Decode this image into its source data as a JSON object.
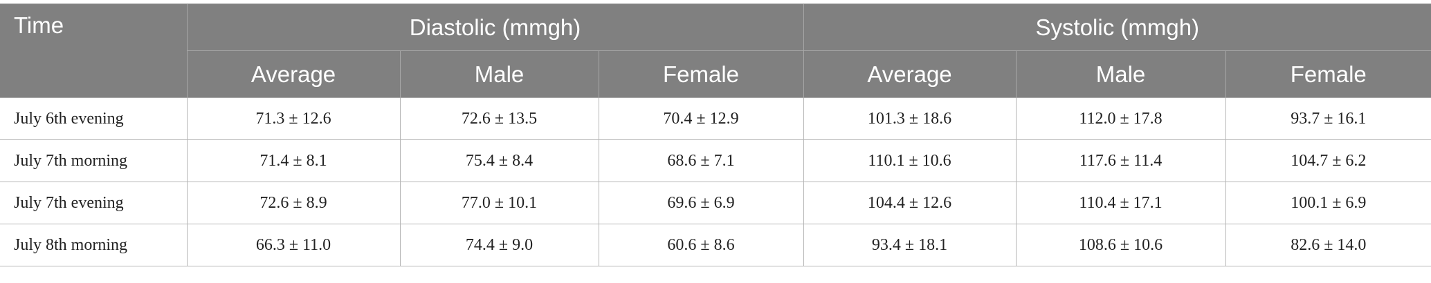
{
  "header": {
    "time": "Time",
    "groups": [
      {
        "label": "Diastolic (mmgh)",
        "columns": [
          "Average",
          "Male",
          "Female"
        ]
      },
      {
        "label": "Systolic (mmgh)",
        "columns": [
          "Average",
          "Male",
          "Female"
        ]
      }
    ]
  },
  "table": {
    "rows": [
      [
        "July 6th evening",
        "71.3 ± 12.6",
        "72.6 ± 13.5",
        "70.4 ± 12.9",
        "101.3 ± 18.6",
        "112.0 ± 17.8",
        "93.7 ± 16.1"
      ],
      [
        "July 7th morning",
        "71.4 ± 8.1",
        "75.4 ± 8.4",
        "68.6 ± 7.1",
        "110.1 ± 10.6",
        "117.6 ± 11.4",
        "104.7 ± 6.2"
      ],
      [
        "July 7th evening",
        "72.6 ± 8.9",
        "77.0 ± 10.1",
        "69.6 ± 6.9",
        "104.4 ± 12.6",
        "110.4 ± 17.1",
        "100.1 ± 6.9"
      ],
      [
        "July 8th morning",
        "66.3 ± 11.0",
        "74.4 ± 9.0",
        "60.6 ± 8.6",
        "93.4 ± 18.1",
        "108.6 ± 10.6",
        "82.6 ± 14.0"
      ]
    ]
  }
}
